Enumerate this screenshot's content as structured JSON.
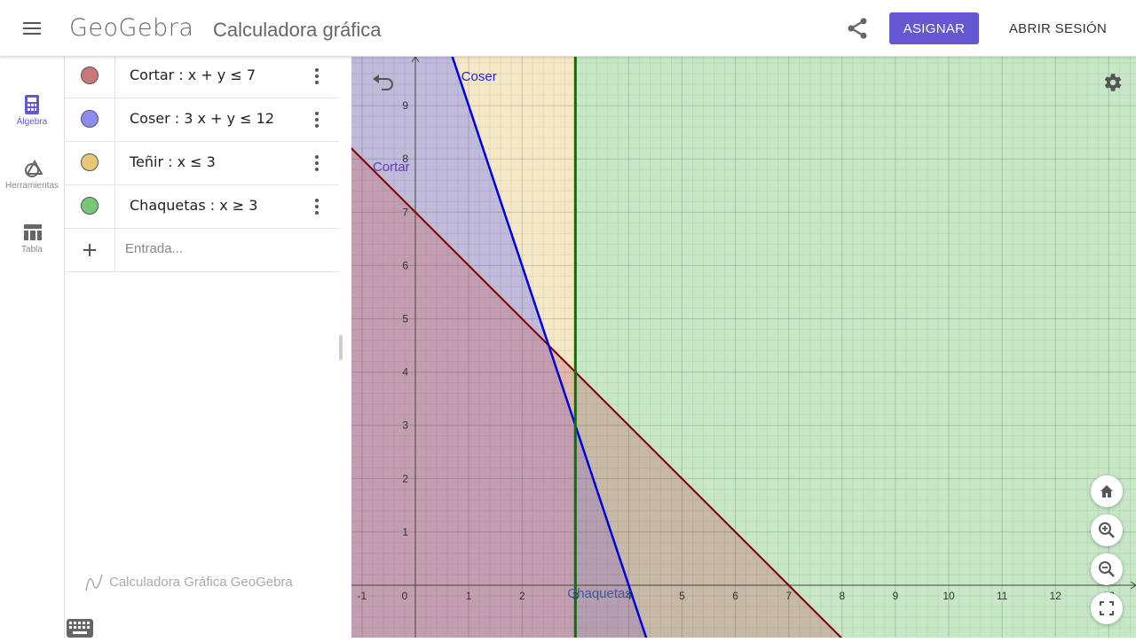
{
  "header": {
    "logo": "GeoGebra",
    "title": "Calculadora gráfica",
    "assign_label": "ASIGNAR",
    "login_label": "ABRIR SESIÓN"
  },
  "rail": {
    "items": [
      {
        "label": "Álgebra",
        "icon": "calculator-icon",
        "active": true
      },
      {
        "label": "Herramientas",
        "icon": "shapes-icon",
        "active": false
      },
      {
        "label": "Tabla",
        "icon": "table-icon",
        "active": false
      }
    ]
  },
  "algebra": {
    "rows": [
      {
        "text": "Cortar :  x + y ≤ 7",
        "color": "#c87878"
      },
      {
        "text": "Coser :  3 x + y ≤ 12",
        "color": "#8c8cf0"
      },
      {
        "text": "Teñir :  x ≤ 3",
        "color": "#e8c878"
      },
      {
        "text": "Chaquetas :  x ≥ 3",
        "color": "#78c878"
      }
    ],
    "input_placeholder": "Entrada...",
    "footer": "Calculadora Gráfica GeoGebra"
  },
  "graph": {
    "x_ticks": [
      "-1",
      "0",
      "1",
      "2",
      "3",
      "4",
      "5",
      "6",
      "7",
      "8",
      "9",
      "10",
      "11",
      "12",
      "13"
    ],
    "y_ticks": [
      "1",
      "2",
      "3",
      "4",
      "5",
      "6",
      "7",
      "8",
      "9"
    ],
    "origin_label": "0",
    "x_range": [
      -1.2,
      13.5
    ],
    "y_range": [
      -1,
      10
    ],
    "labels": {
      "coser": "Coser",
      "cortar": "Cortar",
      "chaquetas": "Chaquetas"
    },
    "colors": {
      "cortar_line": "#7a0000",
      "coser_line": "#0000dd",
      "chaquetas_line": "#007700",
      "accent": "#6557d2"
    }
  }
}
